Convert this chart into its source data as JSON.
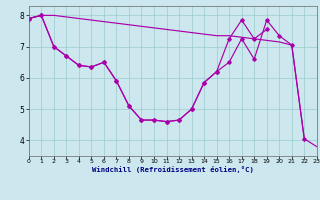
{
  "xlabel": "Windchill (Refroidissement éolien,°C)",
  "bg_color": "#cce8ee",
  "line_color": "#aa00aa",
  "grid_color": "#99cccc",
  "hours": [
    0,
    1,
    2,
    3,
    4,
    5,
    6,
    7,
    8,
    9,
    10,
    11,
    12,
    13,
    14,
    15,
    16,
    17,
    18,
    19,
    20,
    21,
    22,
    23
  ],
  "line1": [
    7.9,
    8.0,
    8.0,
    7.95,
    7.9,
    7.85,
    7.8,
    7.75,
    7.7,
    7.65,
    7.6,
    7.55,
    7.5,
    7.45,
    7.4,
    7.35,
    7.35,
    7.3,
    7.25,
    7.2,
    7.15,
    7.05,
    4.05,
    3.8
  ],
  "line2": [
    7.9,
    8.0,
    7.0,
    6.7,
    6.4,
    6.35,
    6.5,
    5.9,
    5.1,
    4.65,
    4.65,
    4.6,
    4.65,
    5.0,
    5.85,
    6.2,
    6.5,
    7.25,
    6.6,
    7.85,
    7.35,
    7.05,
    4.05,
    null
  ],
  "line3": [
    7.9,
    8.0,
    7.0,
    6.7,
    6.4,
    6.35,
    6.5,
    5.9,
    5.1,
    4.65,
    4.65,
    4.6,
    4.65,
    5.0,
    5.85,
    6.2,
    7.25,
    7.85,
    7.25,
    7.55,
    null,
    null,
    null,
    null
  ],
  "ylim": [
    3.5,
    8.3
  ],
  "xlim": [
    0,
    23
  ],
  "yticks": [
    4,
    5,
    6,
    7,
    8
  ],
  "xticks": [
    0,
    1,
    2,
    3,
    4,
    5,
    6,
    7,
    8,
    9,
    10,
    11,
    12,
    13,
    14,
    15,
    16,
    17,
    18,
    19,
    20,
    21,
    22,
    23
  ]
}
